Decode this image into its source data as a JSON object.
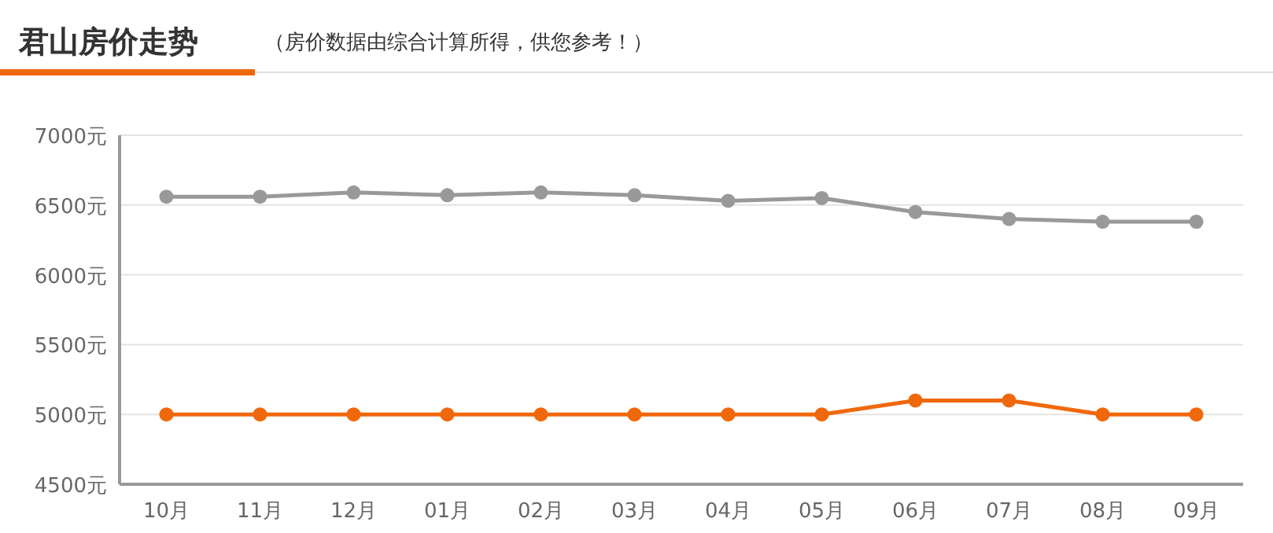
{
  "chart_data": {
    "type": "line",
    "title": "君山房价走势",
    "subtitle": "（房价数据由综合计算所得，供您参考！）",
    "categories": [
      "10月",
      "11月",
      "12月",
      "01月",
      "02月",
      "03月",
      "04月",
      "05月",
      "06月",
      "07月",
      "08月",
      "09月"
    ],
    "series": [
      {
        "color": "#999999",
        "values": [
          6560,
          6560,
          6590,
          6570,
          6590,
          6570,
          6530,
          6550,
          6450,
          6400,
          6380,
          6380
        ]
      },
      {
        "color": "#f0680c",
        "values": [
          5000,
          5000,
          5000,
          5000,
          5000,
          5000,
          5000,
          5000,
          5100,
          5100,
          5000,
          5000
        ]
      }
    ],
    "ylim": [
      4500,
      7000
    ],
    "yticks": [
      {
        "value": 4500,
        "label": "4500元"
      },
      {
        "value": 5000,
        "label": "5000元"
      },
      {
        "value": 5500,
        "label": "5500元"
      },
      {
        "value": 6000,
        "label": "6000元"
      },
      {
        "value": 6500,
        "label": "6500元"
      },
      {
        "value": 7000,
        "label": "7000元"
      }
    ],
    "grid": "y",
    "marker": "circle",
    "line_style": "solid"
  }
}
